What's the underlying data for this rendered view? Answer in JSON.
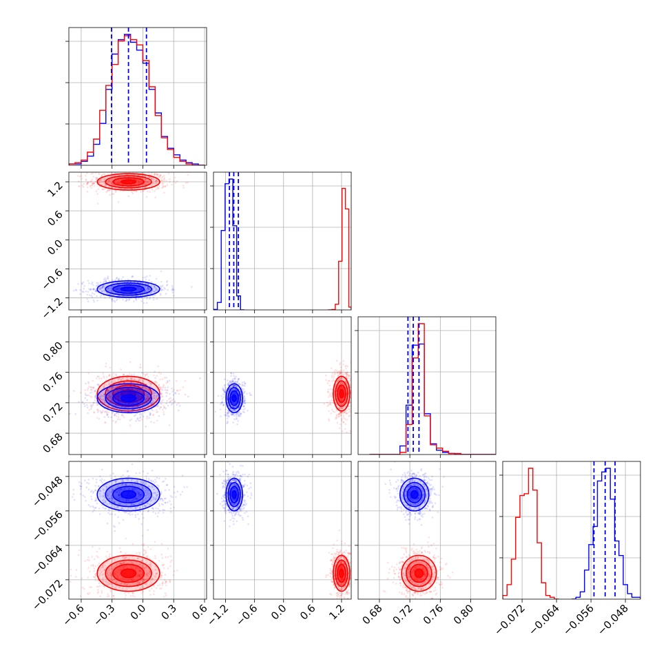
{
  "colors": {
    "series_a": "#ff0000",
    "series_b": "#0000ff",
    "grid": "#b0b0b0",
    "axes": "#000000"
  },
  "chart_data": {
    "type": "corner",
    "title": "",
    "parameters": [
      {
        "range": [
          -0.72,
          0.62
        ],
        "ticks": [
          "−0.6",
          "−0.3",
          "0.0",
          "0.3",
          "0.6"
        ],
        "tick_values": [
          -0.6,
          -0.3,
          0.0,
          0.3,
          0.6
        ]
      },
      {
        "range": [
          -1.45,
          1.4
        ],
        "ticks": [
          "−1.2",
          "−0.6",
          "0.0",
          "0.6",
          "1.2"
        ],
        "tick_values": [
          -1.2,
          -0.6,
          0.0,
          0.6,
          1.2
        ]
      },
      {
        "range": [
          0.652,
          0.833
        ],
        "ticks": [
          "0.68",
          "0.72",
          "0.76",
          "0.80"
        ],
        "tick_values": [
          0.68,
          0.72,
          0.76,
          0.8
        ]
      },
      {
        "range": [
          -0.0765,
          -0.0445
        ],
        "ticks": [
          "−0.072",
          "−0.064",
          "−0.056",
          "−0.048"
        ],
        "tick_values": [
          -0.072,
          -0.064,
          -0.056,
          -0.048
        ]
      }
    ],
    "series": [
      {
        "color": "#ff0000",
        "histograms": [
          {
            "edges": [
              -0.72,
              -0.66,
              -0.6,
              -0.54,
              -0.48,
              -0.42,
              -0.36,
              -0.3,
              -0.24,
              -0.18,
              -0.12,
              -0.06,
              0.0,
              0.06,
              0.12,
              0.18,
              0.24,
              0.3,
              0.36,
              0.42,
              0.48,
              0.54,
              0.6
            ],
            "counts": [
              1,
              2,
              4,
              10,
              20,
              42,
              61,
              77,
              95,
              99,
              96,
              92,
              80,
              60,
              38,
              21,
              12,
              6,
              3,
              1,
              0,
              0
            ]
          },
          {
            "edges": [
              0.92,
              1.0,
              1.07,
              1.14,
              1.21,
              1.28,
              1.35,
              1.4
            ],
            "counts": [
              0,
              4,
              60,
              520,
              1300,
              1080,
              30
            ]
          },
          {
            "edges": [
              0.667,
              0.675,
              0.683,
              0.691,
              0.699,
              0.707,
              0.715,
              0.723,
              0.731,
              0.739,
              0.747,
              0.755,
              0.763,
              0.771,
              0.779,
              0.787,
              0.795,
              0.803,
              0.811,
              0.819,
              0.827,
              0.833
            ],
            "counts": [
              0,
              0,
              0,
              0,
              0,
              2,
              28,
              90,
              122,
              36,
              9,
              6,
              3,
              1,
              1,
              0,
              0,
              0,
              0,
              0,
              0
            ]
          },
          {
            "edges": [
              -0.0765,
              -0.0755,
              -0.0745,
              -0.0735,
              -0.0725,
              -0.0715,
              -0.0705,
              -0.0695,
              -0.0685,
              -0.0675,
              -0.0665,
              -0.0655,
              -0.0645,
              -0.0635
            ],
            "counts": [
              2,
              8,
              22,
              45,
              57,
              58,
              72,
              60,
              31,
              9,
              2,
              1,
              0
            ]
          }
        ],
        "means": [
          -0.14,
          1.2,
          0.732,
          -0.0705
        ],
        "spreads": [
          0.16,
          0.09,
          0.012,
          0.0022
        ]
      },
      {
        "color": "#0000ff",
        "histograms": [
          {
            "edges": [
              -0.72,
              -0.66,
              -0.6,
              -0.54,
              -0.48,
              -0.42,
              -0.36,
              -0.3,
              -0.24,
              -0.18,
              -0.12,
              -0.06,
              0.0,
              0.06,
              0.12,
              0.18,
              0.24,
              0.3,
              0.36,
              0.42,
              0.48,
              0.54,
              0.6
            ],
            "counts": [
              1,
              1,
              3,
              7,
              16,
              32,
              58,
              85,
              96,
              100,
              94,
              88,
              78,
              58,
              40,
              22,
              13,
              8,
              4,
              2,
              1,
              0
            ]
          },
          {
            "edges": [
              -1.45,
              -1.37,
              -1.29,
              -1.21,
              -1.13,
              -1.05,
              -0.97,
              -0.89,
              -0.81
            ],
            "counts": [
              5,
              80,
              850,
              1350,
              1400,
              900,
              150,
              0
            ]
          },
          {
            "edges": [
              0.667,
              0.675,
              0.683,
              0.691,
              0.699,
              0.707,
              0.715,
              0.723,
              0.731,
              0.739,
              0.747,
              0.755,
              0.763,
              0.771,
              0.779,
              0.787,
              0.795,
              0.803,
              0.811,
              0.819,
              0.827,
              0.833
            ],
            "counts": [
              0,
              0,
              0,
              0,
              0,
              8,
              46,
              102,
              103,
              38,
              10,
              4,
              2,
              1,
              0,
              0,
              0,
              0,
              0,
              0,
              0
            ]
          },
          {
            "edges": [
              -0.0605,
              -0.0595,
              -0.0585,
              -0.0575,
              -0.0565,
              -0.0555,
              -0.0545,
              -0.0535,
              -0.0525,
              -0.0515,
              -0.0505,
              -0.0495,
              -0.0485,
              -0.0475,
              -0.0465,
              -0.0455,
              -0.0445
            ],
            "counts": [
              0,
              1,
              4,
              16,
              30,
              40,
              65,
              70,
              72,
              55,
              32,
              24,
              8,
              3,
              1,
              1
            ]
          }
        ],
        "quantiles": [
          [
            -0.305,
            -0.14,
            0.035
          ],
          [
            -1.12,
            -1.03,
            -0.935
          ],
          [
            0.7175,
            0.7245,
            0.732
          ],
          [
            -0.0553,
            -0.0527,
            -0.0504
          ]
        ],
        "means": [
          -0.14,
          -1.02,
          0.726,
          -0.0522
        ],
        "spreads": [
          0.16,
          0.09,
          0.01,
          0.002
        ]
      }
    ]
  }
}
